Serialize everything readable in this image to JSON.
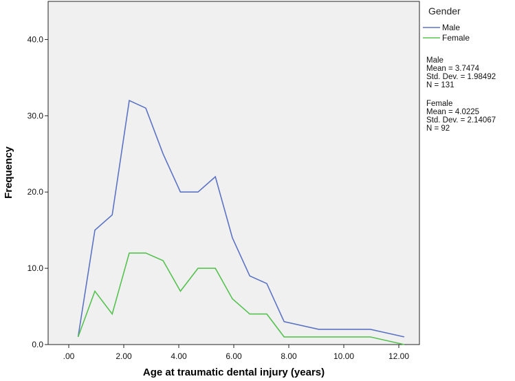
{
  "chart_data": {
    "type": "line",
    "xlabel": "Age at traumatic dental injury (years)",
    "ylabel": "Frequency",
    "xlim": [
      -0.75,
      12.75
    ],
    "ylim": [
      0,
      45
    ],
    "x_ticks": [
      0,
      2,
      4,
      6,
      8,
      10,
      12
    ],
    "x_tick_labels": [
      ".00",
      "2.00",
      "4.00",
      "6.00",
      "8.00",
      "10.00",
      "12.00"
    ],
    "y_ticks": [
      0,
      10,
      20,
      30,
      40
    ],
    "y_tick_labels": [
      "0.0",
      "10.0",
      "20.0",
      "30.0",
      "40.0"
    ],
    "grid": false,
    "legend_title": "Gender",
    "legend_position": "right",
    "series": [
      {
        "name": "Male",
        "color": "#5b73c2",
        "x": [
          0.34,
          0.95,
          1.58,
          2.2,
          2.8,
          3.43,
          4.06,
          4.7,
          5.33,
          5.95,
          6.58,
          7.2,
          7.83,
          9.08,
          10.96,
          12.2
        ],
        "y": [
          1,
          15,
          17,
          32,
          31,
          25,
          20,
          20,
          22,
          14,
          9,
          8,
          3,
          2,
          2,
          1
        ]
      },
      {
        "name": "Female",
        "color": "#55c24f",
        "x": [
          0.34,
          0.95,
          1.58,
          2.2,
          2.8,
          3.43,
          4.06,
          4.7,
          5.33,
          5.95,
          6.58,
          7.2,
          7.83,
          9.08,
          10.96,
          12.2
        ],
        "y": [
          1,
          7,
          4,
          12,
          12,
          11,
          7,
          10,
          10,
          6,
          4,
          4,
          1,
          1,
          1,
          0
        ]
      }
    ],
    "stats": [
      {
        "group": "Male",
        "mean": "Mean = 3.7474",
        "sd": "Std. Dev. = 1.98492",
        "n": "N = 131"
      },
      {
        "group": "Female",
        "mean": "Mean = 4.0225",
        "sd": "Std. Dev. = 2.14067",
        "n": "N = 92"
      }
    ]
  }
}
